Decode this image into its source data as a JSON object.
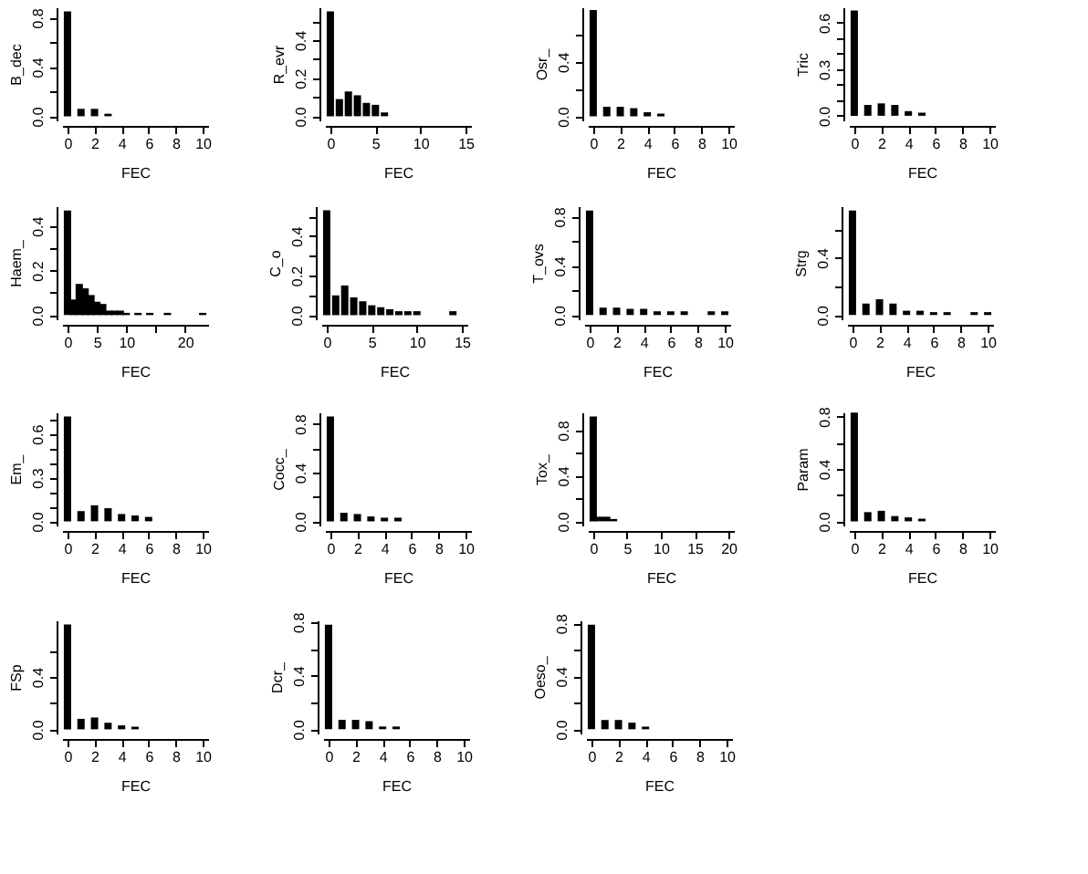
{
  "chart_data": [
    {
      "type": "bar",
      "ylabel": "B_dec",
      "xlabel": "FEC",
      "color": "#000000",
      "x": [
        0,
        1,
        2,
        3
      ],
      "values": [
        0.85,
        0.06,
        0.06,
        0.02
      ],
      "xlim": [
        -0.4,
        10.4
      ],
      "xticks": [
        0,
        2,
        4,
        6,
        8,
        10
      ],
      "ylim": [
        -0.034,
        0.884
      ],
      "yticks": [
        {
          "value": 0,
          "label": "0.0"
        },
        {
          "value": 0.2,
          "label": null
        },
        {
          "value": 0.4,
          "label": "0.4"
        },
        {
          "value": 0.6,
          "label": null
        },
        {
          "value": 0.8,
          "label": "0.8"
        }
      ],
      "grid": false
    },
    {
      "type": "bar",
      "ylabel": "R_evr",
      "xlabel": "FEC",
      "color": "#000000",
      "x": [
        0,
        1,
        2,
        3,
        4,
        5,
        6
      ],
      "values": [
        0.55,
        0.09,
        0.13,
        0.11,
        0.07,
        0.06,
        0.02
      ],
      "xlim": [
        -0.6,
        15.6
      ],
      "xticks": [
        0,
        5,
        10,
        15
      ],
      "ylim": [
        -0.022,
        0.572
      ],
      "yticks": [
        {
          "value": 0,
          "label": "0.0"
        },
        {
          "value": 0.1,
          "label": null
        },
        {
          "value": 0.2,
          "label": "0.2"
        },
        {
          "value": 0.3,
          "label": null
        },
        {
          "value": 0.4,
          "label": "0.4"
        },
        {
          "value": 0.5,
          "label": null
        }
      ],
      "grid": false
    },
    {
      "type": "bar",
      "ylabel": "Osr_",
      "xlabel": "FEC",
      "color": "#000000",
      "x": [
        0,
        1,
        2,
        3,
        4,
        5
      ],
      "values": [
        0.78,
        0.07,
        0.07,
        0.06,
        0.03,
        0.02
      ],
      "xlim": [
        -0.4,
        10.4
      ],
      "xticks": [
        0,
        2,
        4,
        6,
        8,
        10
      ],
      "ylim": [
        -0.03,
        0.8
      ],
      "yticks": [
        {
          "value": 0,
          "label": "0.0"
        },
        {
          "value": 0.2,
          "label": null
        },
        {
          "value": 0.4,
          "label": "0.4"
        },
        {
          "value": 0.6,
          "label": null
        }
      ],
      "grid": false
    },
    {
      "type": "bar",
      "ylabel": "Tric",
      "xlabel": "FEC",
      "color": "#000000",
      "x": [
        0,
        1,
        2,
        3,
        4,
        5
      ],
      "values": [
        0.68,
        0.07,
        0.08,
        0.07,
        0.03,
        0.02
      ],
      "xlim": [
        -0.4,
        10.4
      ],
      "xticks": [
        0,
        2,
        4,
        6,
        8,
        10
      ],
      "ylim": [
        -0.03,
        0.7
      ],
      "yticks": [
        {
          "value": 0,
          "label": "0.0"
        },
        {
          "value": 0.1,
          "label": null
        },
        {
          "value": 0.2,
          "label": null
        },
        {
          "value": 0.3,
          "label": "0.3"
        },
        {
          "value": 0.4,
          "label": null
        },
        {
          "value": 0.5,
          "label": null
        },
        {
          "value": 0.6,
          "label": "0.6"
        }
      ],
      "grid": false
    },
    {
      "type": "bar",
      "ylabel": "Haem_",
      "xlabel": "FEC",
      "color": "#000000",
      "x": [
        0,
        1,
        2,
        3,
        4,
        5,
        6,
        7,
        8,
        9,
        10,
        12,
        14,
        17,
        23
      ],
      "values": [
        0.47,
        0.07,
        0.14,
        0.12,
        0.09,
        0.06,
        0.05,
        0.02,
        0.02,
        0.02,
        0.01,
        0.01,
        0.01,
        0.01,
        0.01
      ],
      "xlim": [
        -0.92,
        23.92
      ],
      "xticks": [
        0,
        5,
        10,
        {
          "value": 15,
          "label": null
        },
        20
      ],
      "ylim": [
        -0.019,
        0.489
      ],
      "yticks": [
        {
          "value": 0,
          "label": "0.0"
        },
        {
          "value": 0.1,
          "label": null
        },
        {
          "value": 0.2,
          "label": "0.2"
        },
        {
          "value": 0.3,
          "label": null
        },
        {
          "value": 0.4,
          "label": "0.4"
        }
      ],
      "grid": false
    },
    {
      "type": "bar",
      "ylabel": "C_o",
      "xlabel": "FEC",
      "color": "#000000",
      "x": [
        0,
        1,
        2,
        3,
        4,
        5,
        6,
        7,
        8,
        9,
        10,
        14
      ],
      "values": [
        0.53,
        0.1,
        0.15,
        0.09,
        0.07,
        0.05,
        0.04,
        0.03,
        0.02,
        0.02,
        0.02,
        0.02
      ],
      "xlim": [
        -0.6,
        15.6
      ],
      "xticks": [
        0,
        5,
        10,
        15
      ],
      "ylim": [
        -0.021,
        0.551
      ],
      "yticks": [
        {
          "value": 0,
          "label": "0.0"
        },
        {
          "value": 0.1,
          "label": null
        },
        {
          "value": 0.2,
          "label": "0.2"
        },
        {
          "value": 0.3,
          "label": null
        },
        {
          "value": 0.4,
          "label": "0.4"
        },
        {
          "value": 0.5,
          "label": null
        }
      ],
      "grid": false
    },
    {
      "type": "bar",
      "ylabel": "T_ovs",
      "xlabel": "FEC",
      "color": "#000000",
      "x": [
        0,
        1,
        2,
        3,
        4,
        5,
        6,
        7,
        9,
        10
      ],
      "values": [
        0.85,
        0.06,
        0.06,
        0.05,
        0.05,
        0.03,
        0.03,
        0.03,
        0.03,
        0.03
      ],
      "xlim": [
        -0.4,
        10.4
      ],
      "xticks": [
        0,
        2,
        4,
        6,
        8,
        10
      ],
      "ylim": [
        -0.035,
        0.885
      ],
      "yticks": [
        {
          "value": 0,
          "label": "0.0"
        },
        {
          "value": 0.2,
          "label": null
        },
        {
          "value": 0.4,
          "label": "0.4"
        },
        {
          "value": 0.6,
          "label": null
        },
        {
          "value": 0.8,
          "label": "0.8"
        }
      ],
      "grid": false
    },
    {
      "type": "bar",
      "ylabel": "Strg",
      "xlabel": "FEC",
      "color": "#000000",
      "x": [
        0,
        1,
        2,
        3,
        4,
        5,
        6,
        7,
        9,
        10
      ],
      "values": [
        0.73,
        0.08,
        0.11,
        0.08,
        0.03,
        0.03,
        0.02,
        0.02,
        0.02,
        0.02
      ],
      "xlim": [
        -0.4,
        10.4
      ],
      "xticks": [
        0,
        2,
        4,
        6,
        8,
        10
      ],
      "ylim": [
        -0.03,
        0.76
      ],
      "yticks": [
        {
          "value": 0,
          "label": "0.0"
        },
        {
          "value": 0.2,
          "label": null
        },
        {
          "value": 0.4,
          "label": "0.4"
        },
        {
          "value": 0.6,
          "label": null
        }
      ],
      "grid": false
    },
    {
      "type": "bar",
      "ylabel": "Em_",
      "xlabel": "FEC",
      "color": "#000000",
      "x": [
        0,
        1,
        2,
        3,
        4,
        5,
        6
      ],
      "values": [
        0.72,
        0.07,
        0.11,
        0.09,
        0.05,
        0.04,
        0.03
      ],
      "xlim": [
        -0.4,
        10.4
      ],
      "xticks": [
        0,
        2,
        4,
        6,
        8,
        10
      ],
      "ylim": [
        -0.029,
        0.749
      ],
      "yticks": [
        {
          "value": 0,
          "label": "0.0"
        },
        {
          "value": 0.1,
          "label": null
        },
        {
          "value": 0.2,
          "label": null
        },
        {
          "value": 0.3,
          "label": "0.3"
        },
        {
          "value": 0.4,
          "label": null
        },
        {
          "value": 0.5,
          "label": null
        },
        {
          "value": 0.6,
          "label": "0.6"
        },
        {
          "value": 0.7,
          "label": null
        }
      ],
      "grid": false
    },
    {
      "type": "bar",
      "ylabel": "Cocc_",
      "xlabel": "FEC",
      "color": "#000000",
      "x": [
        0,
        1,
        2,
        3,
        4,
        5
      ],
      "values": [
        0.86,
        0.07,
        0.06,
        0.04,
        0.03,
        0.03
      ],
      "xlim": [
        -0.4,
        10.4
      ],
      "xticks": [
        0,
        2,
        4,
        6,
        8,
        10
      ],
      "ylim": [
        -0.034,
        0.894
      ],
      "yticks": [
        {
          "value": 0,
          "label": "0.0"
        },
        {
          "value": 0.2,
          "label": null
        },
        {
          "value": 0.4,
          "label": "0.4"
        },
        {
          "value": 0.6,
          "label": null
        },
        {
          "value": 0.8,
          "label": "0.8"
        }
      ],
      "grid": false
    },
    {
      "type": "bar",
      "ylabel": "Tox_",
      "xlabel": "FEC",
      "color": "#000000",
      "x": [
        0,
        1,
        2,
        3
      ],
      "values": [
        0.92,
        0.04,
        0.04,
        0.02
      ],
      "xlim": [
        -0.8,
        20.8
      ],
      "xticks": [
        0,
        5,
        10,
        15,
        20
      ],
      "ylim": [
        -0.037,
        0.957
      ],
      "yticks": [
        {
          "value": 0,
          "label": "0.0"
        },
        {
          "value": 0.2,
          "label": null
        },
        {
          "value": 0.4,
          "label": "0.4"
        },
        {
          "value": 0.6,
          "label": null
        },
        {
          "value": 0.8,
          "label": "0.8"
        }
      ],
      "grid": false
    },
    {
      "type": "bar",
      "ylabel": "Param",
      "xlabel": "FEC",
      "color": "#000000",
      "x": [
        0,
        1,
        2,
        3,
        4,
        5
      ],
      "values": [
        0.83,
        0.07,
        0.08,
        0.04,
        0.03,
        0.02
      ],
      "xlim": [
        -0.4,
        10.4
      ],
      "xticks": [
        0,
        2,
        4,
        6,
        8,
        10
      ],
      "ylim": [
        -0.032,
        0.832
      ],
      "yticks": [
        {
          "value": 0,
          "label": "0.0"
        },
        {
          "value": 0.2,
          "label": null
        },
        {
          "value": 0.4,
          "label": "0.4"
        },
        {
          "value": 0.6,
          "label": null
        },
        {
          "value": 0.8,
          "label": "0.8"
        }
      ],
      "grid": false
    },
    {
      "type": "bar",
      "ylabel": "FSp",
      "xlabel": "FEC",
      "color": "#000000",
      "x": [
        0,
        1,
        2,
        3,
        4,
        5
      ],
      "values": [
        0.8,
        0.08,
        0.09,
        0.05,
        0.03,
        0.02
      ],
      "xlim": [
        -0.4,
        10.4
      ],
      "xticks": [
        0,
        2,
        4,
        6,
        8,
        10
      ],
      "ylim": [
        -0.032,
        0.832
      ],
      "yticks": [
        {
          "value": 0,
          "label": "0.0"
        },
        {
          "value": 0.2,
          "label": null
        },
        {
          "value": 0.4,
          "label": "0.4"
        },
        {
          "value": 0.6,
          "label": null
        }
      ],
      "grid": false
    },
    {
      "type": "bar",
      "ylabel": "Dcr_",
      "xlabel": "FEC",
      "color": "#000000",
      "x": [
        0,
        1,
        2,
        3,
        4,
        5
      ],
      "values": [
        0.78,
        0.07,
        0.07,
        0.06,
        0.02,
        0.02
      ],
      "xlim": [
        -0.4,
        10.4
      ],
      "xticks": [
        0,
        2,
        4,
        6,
        8,
        10
      ],
      "ylim": [
        -0.032,
        0.812
      ],
      "yticks": [
        {
          "value": 0,
          "label": "0.0"
        },
        {
          "value": 0.2,
          "label": null
        },
        {
          "value": 0.4,
          "label": "0.4"
        },
        {
          "value": 0.6,
          "label": null
        },
        {
          "value": 0.8,
          "label": "0.8"
        }
      ],
      "grid": false
    },
    {
      "type": "bar",
      "ylabel": "Oeso_",
      "xlabel": "FEC",
      "color": "#000000",
      "x": [
        0,
        1,
        2,
        3,
        4
      ],
      "values": [
        0.79,
        0.07,
        0.07,
        0.05,
        0.02
      ],
      "xlim": [
        -0.4,
        10.4
      ],
      "xticks": [
        0,
        2,
        4,
        6,
        8,
        10
      ],
      "ylim": [
        -0.032,
        0.822
      ],
      "yticks": [
        {
          "value": 0,
          "label": "0.0"
        },
        {
          "value": 0.2,
          "label": null
        },
        {
          "value": 0.4,
          "label": "0.4"
        },
        {
          "value": 0.6,
          "label": null
        },
        {
          "value": 0.8,
          "label": "0.8"
        }
      ],
      "grid": false
    }
  ]
}
